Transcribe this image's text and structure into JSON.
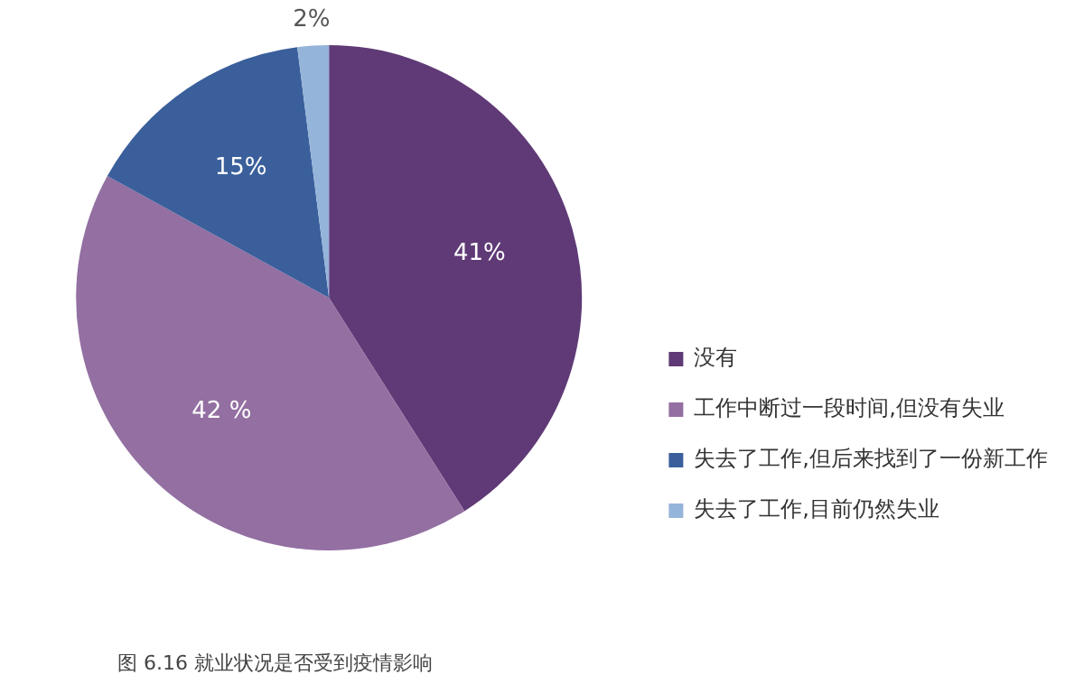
{
  "chart_data": {
    "type": "pie",
    "categories": [
      "没有",
      "工作中断过一段时间,但没有失业",
      "失去了工作,但后来找到了一份新工作",
      "失去了工作,目前仍然失业"
    ],
    "values": [
      41,
      42,
      15,
      2
    ],
    "colors": [
      "#5f3a76",
      "#936fa2",
      "#3a5f9b",
      "#95b4da"
    ],
    "value_labels": [
      "41%",
      "42 %",
      "15%",
      "2%"
    ],
    "legend": "right",
    "annotations": [
      "图 6.16 就业状况是否受到疫情影响"
    ]
  }
}
